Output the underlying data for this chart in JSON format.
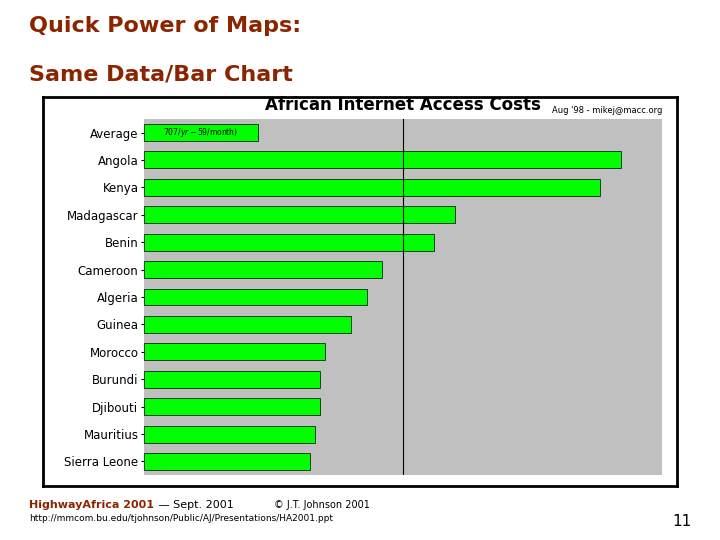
{
  "title_line1": "Quick Power of Maps:",
  "title_line2": "Same Data/Bar Chart",
  "title_color": "#8B2500",
  "chart_title": "African Internet Access Costs",
  "subtitle": "Aug '98 - mikej@macc.org",
  "categories": [
    "Average",
    "Angola",
    "Kenya",
    "Madagascar",
    "Benin",
    "Cameroon",
    "Algeria",
    "Guinea",
    "Morocco",
    "Burundi",
    "Djibouti",
    "Mauritius",
    "Sierra Leone"
  ],
  "values": [
    22,
    92,
    88,
    60,
    56,
    46,
    43,
    40,
    35,
    34,
    34,
    33,
    32
  ],
  "max_value": 100,
  "bar_color": "#00FF00",
  "avg_label": "$707/yr - $59/month)",
  "chart_bg": "#C0C0C0",
  "white_bg": "#FFFFFF",
  "border_color": "#000000",
  "footer_bold": "HighwayAfrica 2001",
  "footer_dash": " — Sept. 2001",
  "footer_sub": "© J.T. Johnson 2001",
  "footer_url": "http://mmcom.bu.edu/tjohnson/Public/AJ/Presentations/HA2001.ppt",
  "page_num": "11",
  "tan_color": "#C8A050",
  "slide_bg": "#FFFFFF"
}
